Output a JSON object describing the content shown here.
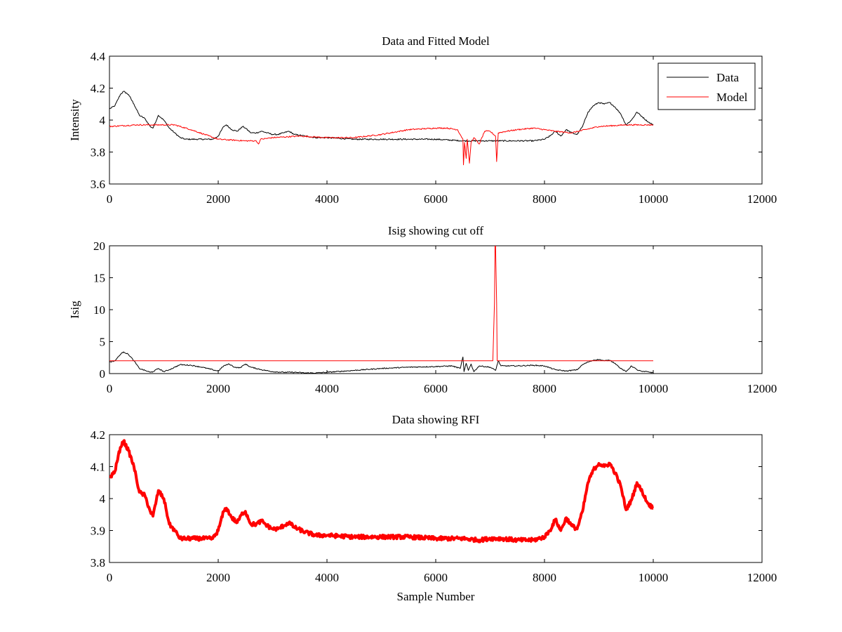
{
  "chart_data": [
    {
      "type": "line",
      "title": "Data and Fitted Model",
      "xlabel": "",
      "ylabel": "Intensity",
      "xlim": [
        0,
        12000
      ],
      "ylim": [
        3.6,
        4.4
      ],
      "xticks": [
        "0",
        "2000",
        "4000",
        "6000",
        "8000",
        "10000",
        "12000"
      ],
      "yticks": [
        "3.6",
        "3.8",
        "4",
        "4.2",
        "4.4"
      ],
      "grid": false,
      "legend": "top-right",
      "series": [
        {
          "name": "Data",
          "color": "#000000",
          "x": [
            0,
            100,
            200,
            260,
            350,
            450,
            550,
            650,
            750,
            800,
            900,
            1000,
            1100,
            1200,
            1300,
            1400,
            1600,
            1800,
            1900,
            2000,
            2100,
            2150,
            2250,
            2350,
            2450,
            2500,
            2600,
            2700,
            2800,
            2900,
            3000,
            3100,
            3200,
            3300,
            3400,
            3600,
            3800,
            4000,
            4500,
            5000,
            5500,
            6000,
            6500,
            6800,
            7000,
            7200,
            7500,
            7800,
            8000,
            8100,
            8200,
            8300,
            8400,
            8500,
            8600,
            8700,
            8800,
            8900,
            9000,
            9100,
            9200,
            9300,
            9400,
            9500,
            9600,
            9700,
            9800,
            9900,
            10000
          ],
          "y": [
            4.07,
            4.09,
            4.16,
            4.18,
            4.16,
            4.1,
            4.03,
            4.01,
            3.96,
            3.95,
            4.03,
            4.0,
            3.95,
            3.92,
            3.89,
            3.88,
            3.88,
            3.88,
            3.88,
            3.9,
            3.96,
            3.97,
            3.94,
            3.93,
            3.96,
            3.95,
            3.92,
            3.92,
            3.93,
            3.92,
            3.91,
            3.91,
            3.92,
            3.93,
            3.91,
            3.9,
            3.89,
            3.89,
            3.88,
            3.88,
            3.88,
            3.88,
            3.87,
            3.87,
            3.87,
            3.87,
            3.87,
            3.87,
            3.88,
            3.9,
            3.93,
            3.9,
            3.94,
            3.92,
            3.91,
            3.96,
            4.05,
            4.09,
            4.11,
            4.1,
            4.11,
            4.08,
            4.04,
            3.97,
            4.0,
            4.05,
            4.02,
            3.99,
            3.97
          ]
        },
        {
          "name": "Model",
          "color": "#ff0000",
          "x": [
            0,
            500,
            1000,
            1200,
            1500,
            2000,
            2500,
            2700,
            2740,
            2780,
            3000,
            3500,
            4000,
            4500,
            5000,
            5500,
            6000,
            6200,
            6400,
            6500,
            6510,
            6530,
            6560,
            6580,
            6620,
            6650,
            6700,
            6800,
            6900,
            7000,
            7100,
            7120,
            7150,
            7300,
            7500,
            7800,
            8000,
            8200,
            8500,
            9000,
            9500,
            10000
          ],
          "y": [
            3.96,
            3.97,
            3.97,
            3.97,
            3.94,
            3.88,
            3.87,
            3.87,
            3.85,
            3.88,
            3.89,
            3.9,
            3.89,
            3.89,
            3.91,
            3.94,
            3.95,
            3.95,
            3.94,
            3.88,
            3.72,
            3.86,
            3.76,
            3.88,
            3.73,
            3.86,
            3.89,
            3.85,
            3.93,
            3.93,
            3.9,
            3.74,
            3.92,
            3.93,
            3.94,
            3.95,
            3.94,
            3.93,
            3.92,
            3.96,
            3.97,
            3.97
          ]
        }
      ]
    },
    {
      "type": "line",
      "title": "Isig showing cut off",
      "xlabel": "",
      "ylabel": "Isig",
      "xlim": [
        0,
        12000
      ],
      "ylim": [
        0,
        20
      ],
      "xticks": [
        "0",
        "2000",
        "4000",
        "6000",
        "8000",
        "10000",
        "12000"
      ],
      "yticks": [
        "0",
        "5",
        "10",
        "15",
        "20"
      ],
      "grid": false,
      "legend": "none",
      "series": [
        {
          "color": "#000000",
          "x": [
            0,
            100,
            200,
            260,
            350,
            450,
            550,
            650,
            750,
            800,
            900,
            1000,
            1100,
            1200,
            1300,
            1500,
            1700,
            1900,
            2000,
            2100,
            2200,
            2300,
            2400,
            2500,
            2600,
            2800,
            3000,
            3200,
            3400,
            3600,
            3800,
            4000,
            4500,
            5000,
            5500,
            6000,
            6300,
            6450,
            6500,
            6520,
            6560,
            6600,
            6650,
            6700,
            6800,
            7000,
            7100,
            7150,
            7200,
            7500,
            7800,
            8000,
            8200,
            8400,
            8600,
            8700,
            8800,
            8900,
            9000,
            9100,
            9200,
            9300,
            9400,
            9500,
            9600,
            9700,
            9800,
            9900,
            10000
          ],
          "y": [
            1.8,
            2.0,
            3.0,
            3.4,
            3.0,
            2.0,
            0.8,
            0.5,
            0.2,
            0.3,
            0.8,
            0.3,
            0.6,
            1.0,
            1.4,
            1.3,
            1.0,
            0.6,
            0.4,
            1.2,
            1.5,
            1.0,
            0.9,
            1.5,
            1.0,
            0.6,
            0.3,
            0.2,
            0.2,
            0.1,
            0.1,
            0.2,
            0.5,
            0.8,
            1.0,
            1.1,
            1.2,
            0.8,
            2.6,
            0.3,
            1.6,
            0.5,
            1.5,
            0.3,
            1.2,
            1.0,
            0.5,
            2.0,
            1.2,
            1.2,
            1.3,
            1.2,
            0.6,
            0.4,
            0.6,
            1.4,
            1.8,
            2.1,
            2.2,
            2.0,
            2.1,
            1.6,
            0.8,
            0.3,
            1.2,
            0.6,
            0.3,
            0.3,
            0.1
          ]
        },
        {
          "color": "#ff0000",
          "x": [
            0,
            7050,
            7080,
            7090,
            7100,
            7120,
            7130,
            10000
          ],
          "y": [
            2.0,
            2.0,
            11.0,
            20.0,
            20.0,
            11.0,
            2.0,
            2.0
          ]
        }
      ]
    },
    {
      "type": "line",
      "title": "Data showing RFI",
      "xlabel": "Sample Number",
      "ylabel": "",
      "xlim": [
        0,
        12000
      ],
      "ylim": [
        3.8,
        4.2
      ],
      "xticks": [
        "0",
        "2000",
        "4000",
        "6000",
        "8000",
        "10000",
        "12000"
      ],
      "yticks": [
        "3.8",
        "3.9",
        "4",
        "4.1",
        "4.2"
      ],
      "grid": false,
      "legend": "none",
      "series": [
        {
          "color": "#ff0000",
          "x": [
            0,
            100,
            200,
            260,
            350,
            450,
            550,
            650,
            750,
            800,
            900,
            1000,
            1100,
            1200,
            1300,
            1400,
            1600,
            1800,
            1900,
            2000,
            2100,
            2150,
            2250,
            2350,
            2450,
            2500,
            2600,
            2700,
            2800,
            2900,
            3000,
            3100,
            3200,
            3300,
            3400,
            3600,
            3800,
            4000,
            4500,
            5000,
            5500,
            6000,
            6500,
            6800,
            7000,
            7200,
            7500,
            7800,
            8000,
            8100,
            8200,
            8300,
            8400,
            8500,
            8600,
            8700,
            8800,
            8900,
            9000,
            9100,
            9200,
            9300,
            9400,
            9500,
            9600,
            9700,
            9800,
            9900,
            10000
          ],
          "y": [
            4.065,
            4.085,
            4.16,
            4.18,
            4.15,
            4.1,
            4.02,
            4.01,
            3.96,
            3.945,
            4.025,
            4.0,
            3.92,
            3.9,
            3.875,
            3.875,
            3.875,
            3.875,
            3.875,
            3.9,
            3.96,
            3.97,
            3.94,
            3.925,
            3.955,
            3.96,
            3.92,
            3.92,
            3.93,
            3.915,
            3.905,
            3.905,
            3.915,
            3.925,
            3.91,
            3.895,
            3.885,
            3.885,
            3.88,
            3.88,
            3.88,
            3.875,
            3.875,
            3.87,
            3.875,
            3.875,
            3.87,
            3.87,
            3.88,
            3.9,
            3.935,
            3.9,
            3.94,
            3.915,
            3.905,
            3.96,
            4.05,
            4.09,
            4.11,
            4.1,
            4.11,
            4.08,
            4.04,
            3.965,
            3.995,
            4.05,
            4.02,
            3.985,
            3.97
          ]
        }
      ]
    }
  ]
}
